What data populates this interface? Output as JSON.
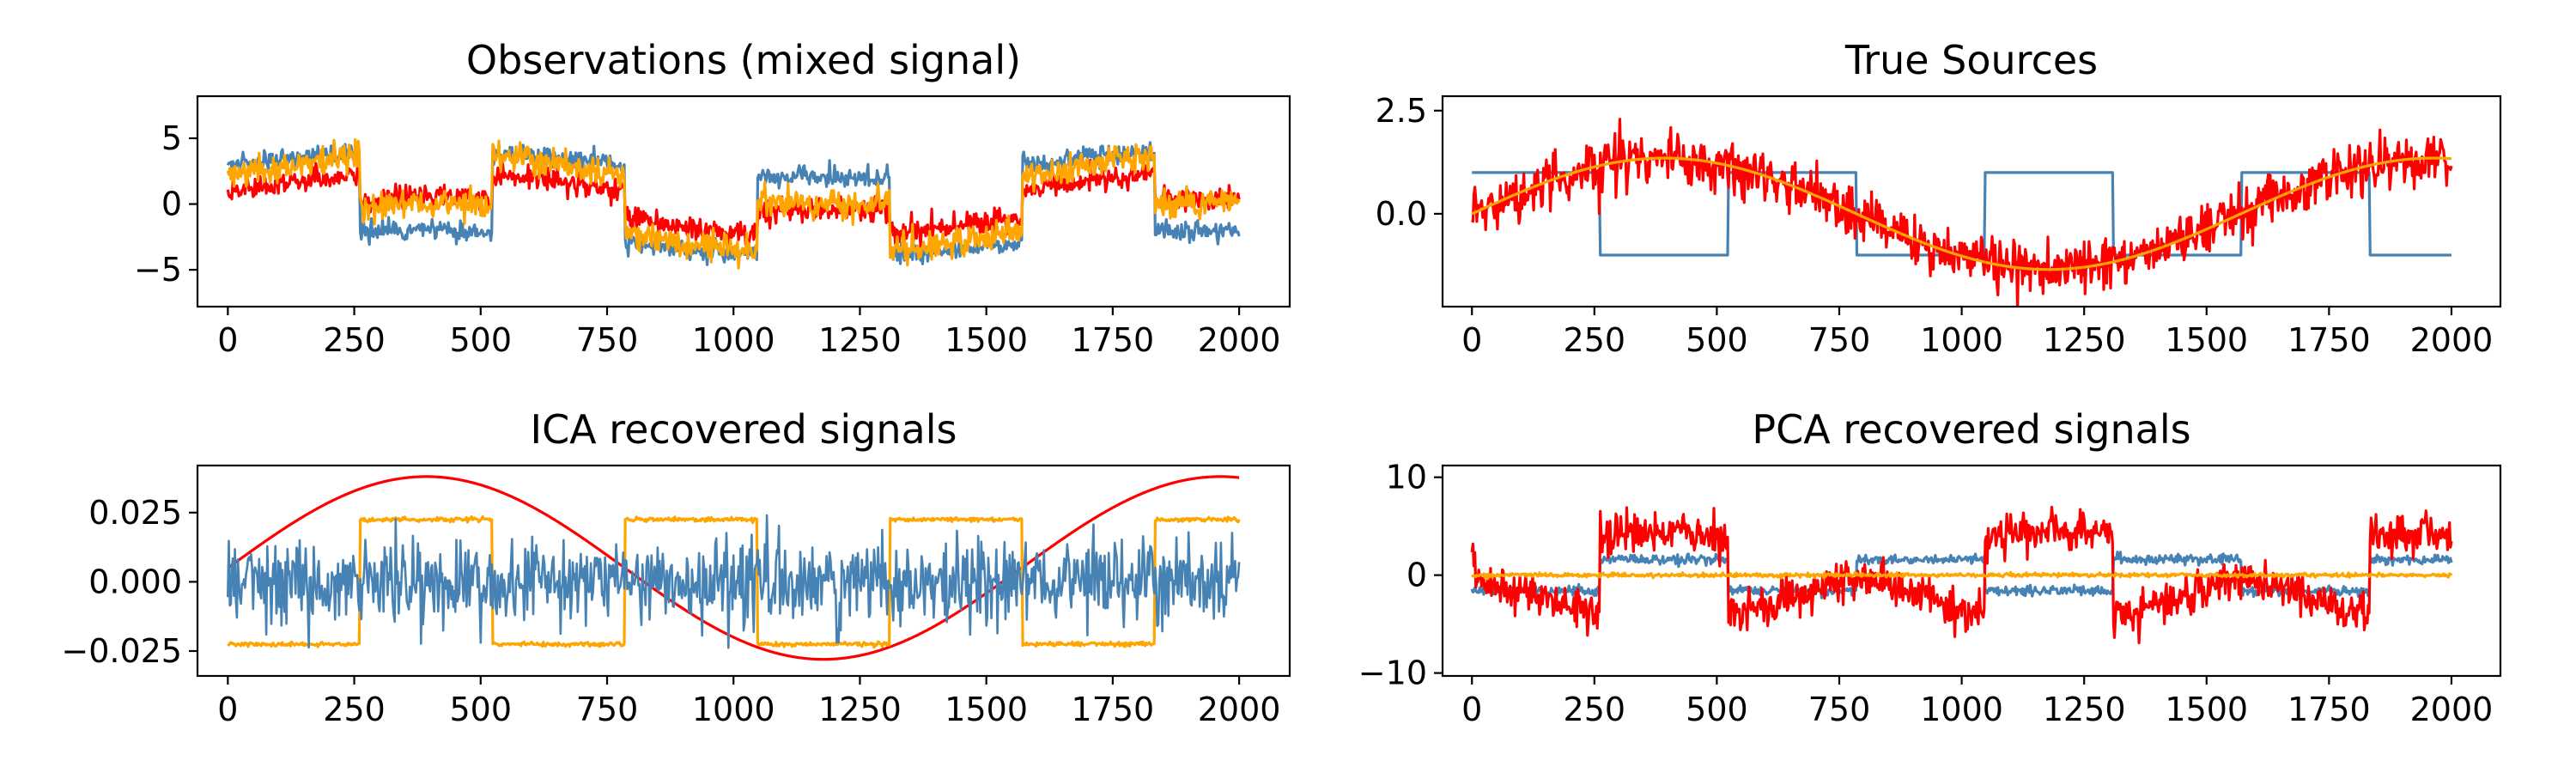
{
  "chart_data": [
    {
      "type": "line",
      "title": "Observations (mixed signal)",
      "xlabel": "",
      "ylabel": "",
      "xlim": [
        -60,
        2100
      ],
      "ylim": [
        -7.8,
        8.2
      ],
      "xticks": [
        0,
        250,
        500,
        750,
        1000,
        1250,
        1500,
        1750,
        2000
      ],
      "yticks": [
        -5,
        0,
        5
      ],
      "ytick_labels": [
        "−5",
        "0",
        "5"
      ],
      "grid": false,
      "legend": null,
      "series": [
        {
          "color": "#4682b4",
          "kind": "mix",
          "a_sin": 1.0,
          "a_sq": 3.0,
          "noise": 0.35,
          "seed": 11
        },
        {
          "color": "#ff0000",
          "kind": "mix",
          "a_sin": 1.5,
          "a_sq": 1.0,
          "noise": 0.45,
          "seed": 23
        },
        {
          "color": "#ffa500",
          "kind": "mix",
          "a_sin": 2.0,
          "a_sq": 2.0,
          "noise": 0.55,
          "seed": 37
        }
      ]
    },
    {
      "type": "line",
      "title": "True Sources",
      "xlabel": "",
      "ylabel": "",
      "xlim": [
        -60,
        2100
      ],
      "ylim": [
        -2.25,
        2.85
      ],
      "xticks": [
        0,
        250,
        500,
        750,
        1000,
        1250,
        1500,
        1750,
        2000
      ],
      "yticks": [
        0.0,
        2.5
      ],
      "ytick_labels": [
        "0.0",
        "2.5"
      ],
      "grid": false,
      "legend": null,
      "series": [
        {
          "color": "#4682b4",
          "kind": "square",
          "amp": 1.0,
          "noise": 0,
          "seed": 0
        },
        {
          "color": "#ff0000",
          "kind": "sine",
          "amp": 1.35,
          "noise": 0.32,
          "seed": 5
        },
        {
          "color": "#ffa500",
          "kind": "sine",
          "amp": 1.35,
          "noise": 0,
          "seed": 0
        }
      ]
    },
    {
      "type": "line",
      "title": "ICA recovered signals",
      "xlabel": "",
      "ylabel": "",
      "xlim": [
        -60,
        2100
      ],
      "ylim": [
        -0.034,
        0.042
      ],
      "xticks": [
        0,
        250,
        500,
        750,
        1000,
        1250,
        1500,
        1750,
        2000
      ],
      "yticks": [
        -0.025,
        0.0,
        0.025
      ],
      "ytick_labels": [
        "−0.025",
        "0.000",
        "0.025"
      ],
      "grid": false,
      "legend": null,
      "series": [
        {
          "color": "#ff0000",
          "kind": "sine",
          "amp": 0.033,
          "offset": 0.005,
          "noise": 0,
          "seed": 0
        },
        {
          "color": "#ffa500",
          "kind": "square",
          "amp": -0.0225,
          "noise": 0.0004,
          "seed": 41
        },
        {
          "color": "#4682b4",
          "kind": "noise",
          "amp": 0.0075,
          "noise": 0,
          "seed": 53
        }
      ]
    },
    {
      "type": "line",
      "title": "PCA recovered signals",
      "xlabel": "",
      "ylabel": "",
      "xlim": [
        -60,
        2100
      ],
      "ylim": [
        -10.3,
        11.2
      ],
      "xticks": [
        0,
        250,
        500,
        750,
        1000,
        1250,
        1500,
        1750,
        2000
      ],
      "yticks": [
        -10,
        0,
        10
      ],
      "ytick_labels": [
        "−10",
        "0",
        "10"
      ],
      "grid": false,
      "legend": null,
      "series": [
        {
          "color": "#4682b4",
          "kind": "square",
          "amp": -1.6,
          "noise": 0.25,
          "seed": 61
        },
        {
          "color": "#ff0000",
          "kind": "mixsig",
          "amp": -4.5,
          "noise": 1.0,
          "seed": 71
        },
        {
          "color": "#ffa500",
          "kind": "flat",
          "amp": 0.0,
          "noise": 0.1,
          "seed": 83
        }
      ]
    }
  ]
}
